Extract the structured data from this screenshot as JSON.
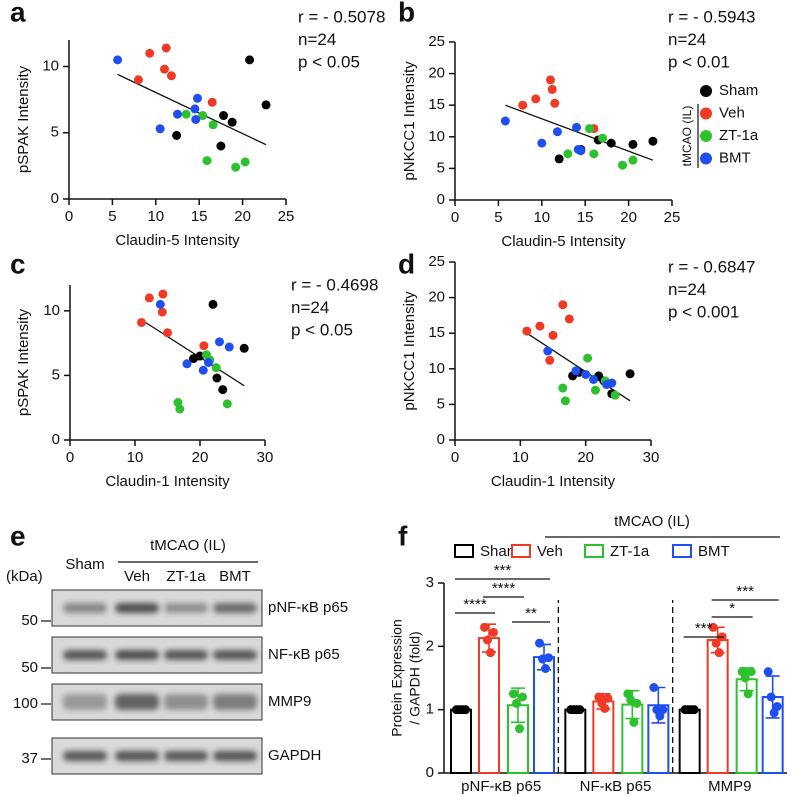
{
  "chart_data": [
    {
      "type": "scatter",
      "panel": "a",
      "xlabel": "Claudin-5 Intensity",
      "ylabel": "pSPAK Intensity",
      "annotations": [
        "r = - 0.5078",
        "n=24",
        "p < 0.05"
      ],
      "legend": false,
      "xlim": [
        0,
        25
      ],
      "ylim": [
        0,
        12
      ],
      "xticks": [
        0,
        5,
        10,
        15,
        20,
        25
      ],
      "yticks": [
        0,
        5,
        10
      ],
      "series": [
        {
          "color": "#000000",
          "x": [
            20.8,
            22.7,
            17.8,
            18.8,
            12.4,
            17.5
          ],
          "y": [
            10.5,
            7.1,
            6.3,
            5.8,
            4.8,
            4.0
          ]
        },
        {
          "color": "#f03a25",
          "x": [
            8.0,
            9.3,
            11.2,
            11.0,
            11.8,
            16.5
          ],
          "y": [
            9.0,
            11.0,
            11.4,
            9.8,
            9.3,
            7.3
          ]
        },
        {
          "color": "#2ec12e",
          "x": [
            13.5,
            15.4,
            16.6,
            19.2,
            20.3,
            15.9
          ],
          "y": [
            6.4,
            6.3,
            5.6,
            2.4,
            2.8,
            2.9
          ]
        },
        {
          "color": "#1f4ff0",
          "x": [
            5.6,
            10.5,
            12.5,
            14.5,
            14.8,
            14.6
          ],
          "y": [
            10.5,
            5.3,
            6.4,
            6.8,
            7.6,
            6.0
          ]
        }
      ],
      "fit": {
        "x": [
          5.6,
          22.7
        ],
        "y": [
          9.4,
          4.1
        ]
      }
    },
    {
      "type": "scatter",
      "panel": "b",
      "xlabel": "Claudin-5 Intensity",
      "ylabel": "pNKCC1 Intensity",
      "annotations": [
        "r = - 0.5943",
        "n=24",
        "p < 0.01"
      ],
      "legend": true,
      "legend_group": "tMCAO (IL)",
      "xlim": [
        0,
        25
      ],
      "ylim": [
        0,
        25
      ],
      "xticks": [
        0,
        5,
        10,
        15,
        20,
        25
      ],
      "yticks": [
        0,
        5,
        10,
        15,
        20,
        25
      ],
      "series": [
        {
          "name": "Sham",
          "color": "#000000",
          "x": [
            12.0,
            16.5,
            18.0,
            20.5,
            22.8,
            14.5
          ],
          "y": [
            6.5,
            9.5,
            9.0,
            8.8,
            9.3,
            8.0
          ]
        },
        {
          "name": "Veh",
          "color": "#f03a25",
          "x": [
            7.8,
            9.3,
            11.0,
            11.2,
            11.5,
            16.0
          ],
          "y": [
            15.0,
            16.0,
            19.0,
            17.5,
            15.3,
            11.3
          ]
        },
        {
          "name": "ZT-1a",
          "color": "#2ec12e",
          "x": [
            13.0,
            15.5,
            16.0,
            17.0,
            19.3,
            20.5
          ],
          "y": [
            7.3,
            11.3,
            7.3,
            9.8,
            5.5,
            6.3
          ]
        },
        {
          "name": "BMT",
          "color": "#1f4ff0",
          "x": [
            5.8,
            10.0,
            11.8,
            14.0,
            14.2,
            14.5
          ],
          "y": [
            12.5,
            9.0,
            10.8,
            11.5,
            8.0,
            7.8
          ]
        }
      ],
      "fit": {
        "x": [
          5.8,
          22.8
        ],
        "y": [
          15.0,
          6.3
        ]
      }
    },
    {
      "type": "scatter",
      "panel": "c",
      "xlabel": "Claudin-1 Intensity",
      "ylabel": "pSPAK Intensity",
      "annotations": [
        "r = - 0.4698",
        "n=24",
        "p < 0.05"
      ],
      "legend": false,
      "xlim": [
        0,
        30
      ],
      "ylim": [
        0,
        12
      ],
      "xticks": [
        0,
        10,
        20,
        30
      ],
      "yticks": [
        0,
        5,
        10
      ],
      "series": [
        {
          "color": "#000000",
          "x": [
            22.0,
            26.8,
            20.0,
            19.0,
            22.6,
            23.5
          ],
          "y": [
            10.5,
            7.1,
            6.5,
            6.3,
            4.8,
            3.9
          ]
        },
        {
          "color": "#f03a25",
          "x": [
            11.0,
            12.2,
            14.3,
            14.2,
            15.0,
            20.6
          ],
          "y": [
            9.1,
            11.0,
            11.3,
            9.9,
            8.3,
            7.3
          ]
        },
        {
          "color": "#2ec12e",
          "x": [
            16.6,
            16.9,
            21.0,
            21.5,
            22.5,
            24.2
          ],
          "y": [
            2.9,
            2.4,
            6.6,
            6.2,
            5.6,
            2.8
          ]
        },
        {
          "color": "#1f4ff0",
          "x": [
            13.9,
            18.0,
            20.5,
            21.3,
            23.0,
            24.5
          ],
          "y": [
            10.5,
            5.9,
            5.4,
            6.0,
            7.6,
            7.2
          ]
        }
      ],
      "fit": {
        "x": [
          11.0,
          26.8
        ],
        "y": [
          9.3,
          4.2
        ]
      }
    },
    {
      "type": "scatter",
      "panel": "d",
      "xlabel": "Claudin-1 Intensity",
      "ylabel": "pNKCC1 Intensity",
      "annotations": [
        "r = - 0.6847",
        "n=24",
        "p < 0.001"
      ],
      "legend": false,
      "xlim": [
        0,
        30
      ],
      "ylim": [
        0,
        25
      ],
      "xticks": [
        0,
        10,
        20,
        30
      ],
      "yticks": [
        0,
        5,
        10,
        15,
        20,
        25
      ],
      "series": [
        {
          "color": "#000000",
          "x": [
            18.0,
            19.0,
            22.0,
            22.8,
            24.0,
            26.8
          ],
          "y": [
            9.0,
            9.5,
            9.0,
            8.3,
            6.5,
            9.3
          ]
        },
        {
          "color": "#f03a25",
          "x": [
            11.0,
            13.0,
            15.0,
            16.5,
            17.5,
            14.5
          ],
          "y": [
            15.3,
            16.0,
            14.7,
            19.0,
            17.0,
            11.2
          ]
        },
        {
          "color": "#2ec12e",
          "x": [
            16.5,
            16.9,
            20.3,
            21.5,
            23.0,
            24.5
          ],
          "y": [
            7.3,
            5.5,
            11.5,
            7.0,
            8.3,
            6.3
          ]
        },
        {
          "color": "#1f4ff0",
          "x": [
            14.2,
            18.5,
            20.0,
            21.2,
            23.2,
            24.0
          ],
          "y": [
            12.5,
            9.7,
            9.2,
            8.5,
            7.8,
            8.0
          ]
        }
      ],
      "fit": {
        "x": [
          11.0,
          26.8
        ],
        "y": [
          15.0,
          5.5
        ]
      }
    },
    {
      "type": "bar",
      "panel": "f",
      "ylabel": [
        "Protein Expression",
        "/ GAPDH (fold)"
      ],
      "legend_group": "tMCAO (IL)",
      "categories": [
        "pNF-κB p65",
        "NF-κB p65",
        "MMP9"
      ],
      "ylim": [
        0,
        3
      ],
      "yticks": [
        0,
        1,
        2,
        3
      ],
      "series": [
        {
          "name": "Sham",
          "color": "#000000",
          "values": [
            1.0,
            1.0,
            1.0
          ],
          "errors": [
            0.02,
            0.02,
            0.02
          ],
          "points": [
            [
              1.0,
              1.0,
              1.0,
              1.0
            ],
            [
              1.0,
              1.0,
              1.0,
              1.0
            ],
            [
              1.0,
              1.0,
              1.0,
              1.0
            ]
          ]
        },
        {
          "name": "Veh",
          "color": "#f03a25",
          "values": [
            2.13,
            1.13,
            2.1
          ],
          "errors": [
            0.22,
            0.12,
            0.2
          ],
          "points": [
            [
              2.3,
              2.1,
              1.9,
              2.22
            ],
            [
              1.2,
              1.1,
              1.02,
              1.18
            ],
            [
              2.3,
              2.05,
              1.9,
              2.15
            ]
          ]
        },
        {
          "name": "ZT-1a",
          "color": "#2ec12e",
          "values": [
            1.07,
            1.08,
            1.48
          ],
          "errors": [
            0.27,
            0.22,
            0.18
          ],
          "points": [
            [
              1.25,
              1.1,
              0.7,
              1.2
            ],
            [
              1.25,
              1.15,
              0.8,
              1.1
            ],
            [
              1.6,
              1.5,
              1.25,
              1.6
            ]
          ]
        },
        {
          "name": "BMT",
          "color": "#1f4ff0",
          "values": [
            1.83,
            1.07,
            1.2
          ],
          "errors": [
            0.2,
            0.28,
            0.33
          ],
          "points": [
            [
              2.05,
              1.8,
              1.65,
              1.82
            ],
            [
              1.35,
              1.0,
              0.9,
              1.0
            ],
            [
              1.6,
              1.2,
              0.95,
              1.05
            ]
          ]
        }
      ],
      "significance": [
        "****",
        "****",
        "***",
        "**",
        "***",
        "*",
        "***"
      ]
    }
  ],
  "blot": {
    "panel": "e",
    "kda_label": "(kDa)",
    "lanes": [
      "Sham",
      "Veh",
      "ZT-1a",
      "BMT"
    ],
    "group": "tMCAO (IL)",
    "rows": [
      {
        "label": "pNF-κB p65",
        "marker": "50"
      },
      {
        "label": "NF-κB p65",
        "marker": "50"
      },
      {
        "label": "MMP9",
        "marker": "100"
      },
      {
        "label": "GAPDH",
        "marker": "37"
      }
    ]
  }
}
